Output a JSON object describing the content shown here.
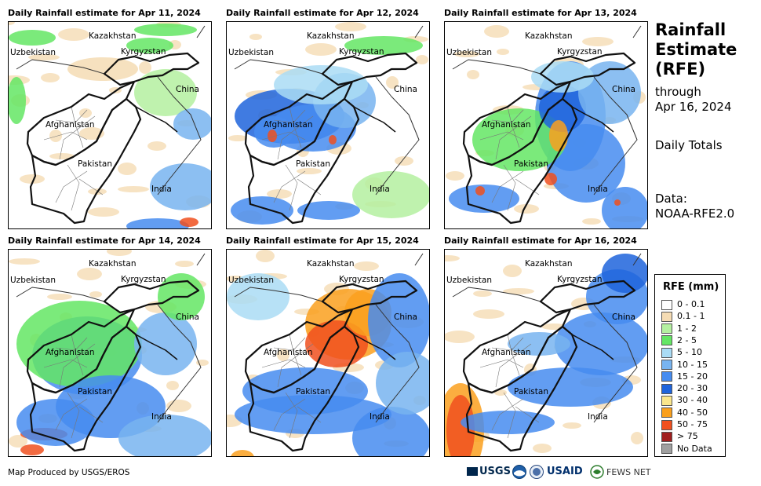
{
  "panels": [
    {
      "title": "Daily Rainfall estimate for Apr 11, 2024"
    },
    {
      "title": "Daily Rainfall estimate for Apr 12, 2024"
    },
    {
      "title": "Daily Rainfall estimate for Apr 13, 2024"
    },
    {
      "title": "Daily Rainfall estimate for Apr 14, 2024"
    },
    {
      "title": "Daily Rainfall estimate for Apr 15, 2024"
    },
    {
      "title": "Daily Rainfall estimate for Apr 16, 2024"
    }
  ],
  "countries": {
    "kazakhstan": "Kazakhstan",
    "uzbekistan": "Uzbekistan",
    "kyrgyzstan": "Kyrgyzstan",
    "china": "China",
    "afghanistan": "Afghanistan",
    "pakistan": "Pakistan",
    "india": "India"
  },
  "sidebar": {
    "title_line1": "Rainfall",
    "title_line2": "Estimate",
    "title_line3": "(RFE)",
    "through": "through",
    "date": "Apr 16, 2024",
    "totals": "Daily Totals",
    "data_label": "Data:",
    "data_source": "NOAA-RFE2.0"
  },
  "legend": {
    "title": "RFE (mm)",
    "items": [
      {
        "label": "0 - 0.1",
        "color": "#ffffff"
      },
      {
        "label": "0.1 - 1",
        "color": "#f5dcb4"
      },
      {
        "label": "1 - 2",
        "color": "#b4f0a0"
      },
      {
        "label": "2 - 5",
        "color": "#64e664"
      },
      {
        "label": "5 - 10",
        "color": "#aadcf5"
      },
      {
        "label": "10 - 15",
        "color": "#78b4f0"
      },
      {
        "label": "15 - 20",
        "color": "#468cf0"
      },
      {
        "label": "20 - 30",
        "color": "#1e64dc"
      },
      {
        "label": "30 - 40",
        "color": "#fae68c"
      },
      {
        "label": "40 - 50",
        "color": "#faa01e"
      },
      {
        "label": "50 - 75",
        "color": "#f0501e"
      },
      {
        "label": "> 75",
        "color": "#a01e1e"
      },
      {
        "label": "No Data",
        "color": "#a0a0a0"
      }
    ]
  },
  "credit": "Map Produced by USGS/EROS",
  "logos": {
    "usgs": "USGS",
    "usaid": "USAID",
    "fews": "FEWS NET"
  }
}
